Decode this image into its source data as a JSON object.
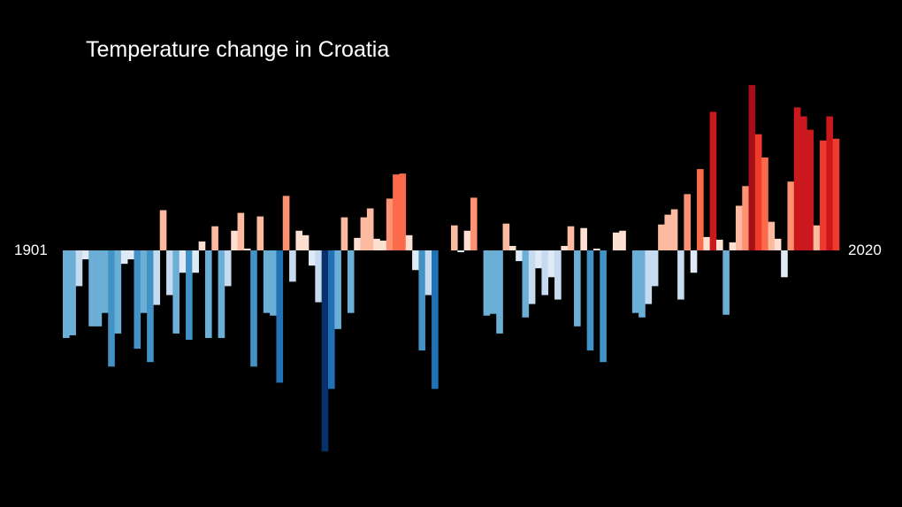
{
  "chart_data": {
    "type": "bar",
    "title": "Temperature change in Croatia",
    "x_start_label": "1901",
    "x_end_label": "2020",
    "x_start": 1901,
    "x_end": 2020,
    "xlabel": "",
    "ylabel": "",
    "ylim": [
      -2.2,
      2.1
    ],
    "grid": false,
    "legend": "none",
    "color_scale": {
      "cold": [
        "#deebf7",
        "#c6dbef",
        "#6baed6",
        "#4292c6",
        "#2171b5",
        "#08519c",
        "#08306b"
      ],
      "warm": [
        "#fee0d2",
        "#fcbba1",
        "#fc9272",
        "#fb6a4a",
        "#ef3b2c",
        "#cb181d",
        "#a50f15",
        "#67000d"
      ]
    },
    "years": [
      1901,
      1902,
      1903,
      1904,
      1905,
      1906,
      1907,
      1908,
      1909,
      1910,
      1911,
      1912,
      1913,
      1914,
      1915,
      1916,
      1917,
      1918,
      1919,
      1920,
      1921,
      1922,
      1923,
      1924,
      1925,
      1926,
      1927,
      1928,
      1929,
      1930,
      1931,
      1932,
      1933,
      1934,
      1935,
      1936,
      1937,
      1938,
      1939,
      1940,
      1941,
      1942,
      1943,
      1944,
      1945,
      1946,
      1947,
      1948,
      1949,
      1950,
      1951,
      1952,
      1953,
      1954,
      1955,
      1956,
      1957,
      1958,
      1959,
      1960,
      1961,
      1962,
      1963,
      1964,
      1965,
      1966,
      1967,
      1968,
      1969,
      1970,
      1971,
      1972,
      1973,
      1974,
      1975,
      1976,
      1977,
      1978,
      1979,
      1980,
      1981,
      1982,
      1983,
      1984,
      1985,
      1986,
      1987,
      1988,
      1989,
      1990,
      1991,
      1992,
      1993,
      1994,
      1995,
      1996,
      1997,
      1998,
      1999,
      2000,
      2001,
      2002,
      2003,
      2004,
      2005,
      2006,
      2007,
      2008,
      2009,
      2010,
      2011,
      2012,
      2013,
      2014,
      2015,
      2016,
      2017,
      2018,
      2019,
      2020
    ],
    "values": [
      -0.98,
      -0.95,
      -0.4,
      -0.1,
      -0.85,
      -0.85,
      -0.7,
      -1.3,
      -0.93,
      -0.15,
      -0.1,
      -1.1,
      -0.7,
      -1.25,
      -0.61,
      0.45,
      -0.5,
      -0.93,
      -0.25,
      -1.0,
      -0.25,
      0.1,
      -0.98,
      0.27,
      -0.98,
      -0.4,
      0.22,
      0.42,
      0.02,
      -1.3,
      0.38,
      -0.7,
      -0.73,
      -1.48,
      0.61,
      -0.35,
      0.22,
      0.17,
      -0.17,
      -0.58,
      -2.25,
      -1.55,
      -0.88,
      0.37,
      -0.7,
      0.14,
      0.37,
      0.47,
      0.13,
      0.11,
      0.58,
      0.85,
      0.86,
      0.17,
      -0.22,
      -1.12,
      -0.5,
      -1.55,
      0.0,
      0.0,
      0.28,
      -0.02,
      0.22,
      0.59,
      0.0,
      -0.73,
      -0.71,
      -0.93,
      0.3,
      0.05,
      -0.12,
      -0.75,
      -0.6,
      -0.2,
      -0.5,
      -0.3,
      -0.55,
      0.05,
      0.27,
      -0.85,
      0.25,
      -1.12,
      0.02,
      -1.25,
      0.0,
      0.2,
      0.22,
      0.0,
      -0.7,
      -0.75,
      -0.6,
      -0.4,
      0.29,
      0.4,
      0.46,
      -0.55,
      0.63,
      -0.25,
      0.91,
      0.15,
      1.55,
      0.12,
      -0.72,
      0.09,
      0.5,
      0.72,
      1.85,
      1.3,
      1.04,
      0.32,
      0.13,
      -0.3,
      0.77,
      1.6,
      1.5,
      1.35,
      0.28,
      1.23,
      1.5,
      1.25
    ]
  }
}
